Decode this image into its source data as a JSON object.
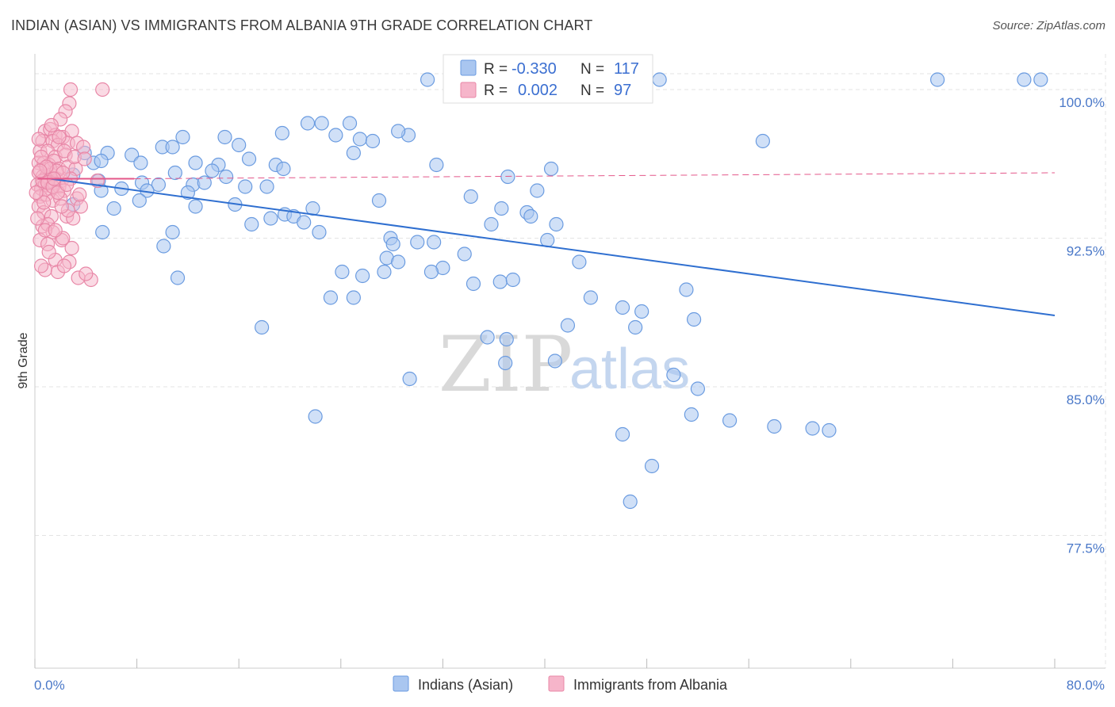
{
  "title": "INDIAN (ASIAN) VS IMMIGRANTS FROM ALBANIA 9TH GRADE CORRELATION CHART",
  "source": "Source: ZipAtlas.com",
  "watermark": {
    "zip": "ZIP",
    "atlas": "atlas"
  },
  "colors": {
    "blue_fill": "#a9c6f0",
    "blue_stroke": "#6a9be0",
    "blue_line": "#2f6fd0",
    "pink_fill": "#f6b5ca",
    "pink_stroke": "#e887a7",
    "pink_line": "#e4578a",
    "tick_text": "#4a78c8",
    "grid": "#e3e3e3"
  },
  "legend_box": {
    "series": [
      {
        "r_label": "R =",
        "r_value": "-0.330",
        "n_label": "N =",
        "n_value": "117"
      },
      {
        "r_label": "R =",
        "r_value": "0.002",
        "n_label": "N =",
        "n_value": "97"
      }
    ]
  },
  "bottom_legend": [
    "Indians (Asian)",
    "Immigrants from Albania"
  ],
  "chart_data": {
    "type": "scatter",
    "title": "INDIAN (ASIAN) VS IMMIGRANTS FROM ALBANIA 9TH GRADE CORRELATION CHART",
    "xlabel": "",
    "ylabel": "9th Grade",
    "xlim": [
      0,
      80
    ],
    "ylim": [
      70.8,
      101.8
    ],
    "x_tick_labels": [
      "0.0%",
      "80.0%"
    ],
    "y_ticks": [
      77.5,
      85.0,
      92.5,
      100.0
    ],
    "y_tick_labels": [
      "77.5%",
      "85.0%",
      "92.5%",
      "100.0%"
    ],
    "grid": true,
    "series": [
      {
        "name": "Indians (Asian)",
        "r": -0.33,
        "n": 117,
        "trend": {
          "x": [
            1.2,
            80
          ],
          "y": [
            95.5,
            88.6
          ]
        },
        "points": [
          [
            30.8,
            100.5
          ],
          [
            49.0,
            100.5
          ],
          [
            70.8,
            100.5
          ],
          [
            77.6,
            100.5
          ],
          [
            78.9,
            100.5
          ],
          [
            21.4,
            98.3
          ],
          [
            22.5,
            98.3
          ],
          [
            24.7,
            98.3
          ],
          [
            29.3,
            97.7
          ],
          [
            28.5,
            97.9
          ],
          [
            19.4,
            97.8
          ],
          [
            23.6,
            97.7
          ],
          [
            11.6,
            97.6
          ],
          [
            14.9,
            97.6
          ],
          [
            25.5,
            97.5
          ],
          [
            26.5,
            97.4
          ],
          [
            57.1,
            97.4
          ],
          [
            10.0,
            97.1
          ],
          [
            10.8,
            97.1
          ],
          [
            16.0,
            97.2
          ],
          [
            5.7,
            96.8
          ],
          [
            3.9,
            96.8
          ],
          [
            7.6,
            96.7
          ],
          [
            8.3,
            96.3
          ],
          [
            4.6,
            96.3
          ],
          [
            5.2,
            96.4
          ],
          [
            18.9,
            96.2
          ],
          [
            25.0,
            96.8
          ],
          [
            16.8,
            96.5
          ],
          [
            14.4,
            96.2
          ],
          [
            19.5,
            96.0
          ],
          [
            12.6,
            96.3
          ],
          [
            13.9,
            95.9
          ],
          [
            11.0,
            95.8
          ],
          [
            31.5,
            96.2
          ],
          [
            40.5,
            96.0
          ],
          [
            5.0,
            95.4
          ],
          [
            3.0,
            95.7
          ],
          [
            8.4,
            95.3
          ],
          [
            9.7,
            95.2
          ],
          [
            12.4,
            95.2
          ],
          [
            13.3,
            95.3
          ],
          [
            15.0,
            95.6
          ],
          [
            16.5,
            95.1
          ],
          [
            18.2,
            95.1
          ],
          [
            6.8,
            95.0
          ],
          [
            5.2,
            94.9
          ],
          [
            8.8,
            94.9
          ],
          [
            12.0,
            94.8
          ],
          [
            37.1,
            95.6
          ],
          [
            34.2,
            94.6
          ],
          [
            27.0,
            94.4
          ],
          [
            3.0,
            94.2
          ],
          [
            6.2,
            94.0
          ],
          [
            12.6,
            94.1
          ],
          [
            18.5,
            93.5
          ],
          [
            19.6,
            93.7
          ],
          [
            21.8,
            94.0
          ],
          [
            20.3,
            93.6
          ],
          [
            36.6,
            94.0
          ],
          [
            38.6,
            93.8
          ],
          [
            38.9,
            93.6
          ],
          [
            17.0,
            93.2
          ],
          [
            21.1,
            93.3
          ],
          [
            22.3,
            92.8
          ],
          [
            5.3,
            92.8
          ],
          [
            10.8,
            92.8
          ],
          [
            27.9,
            92.5
          ],
          [
            28.1,
            92.2
          ],
          [
            30.0,
            92.3
          ],
          [
            31.3,
            92.3
          ],
          [
            40.2,
            92.4
          ],
          [
            27.6,
            91.5
          ],
          [
            32.0,
            91.0
          ],
          [
            11.2,
            90.5
          ],
          [
            25.0,
            89.5
          ],
          [
            25.7,
            90.6
          ],
          [
            27.4,
            90.8
          ],
          [
            28.5,
            91.3
          ],
          [
            31.1,
            90.8
          ],
          [
            36.5,
            90.3
          ],
          [
            37.5,
            90.4
          ],
          [
            43.6,
            89.5
          ],
          [
            46.1,
            89.0
          ],
          [
            47.6,
            88.8
          ],
          [
            17.8,
            88.0
          ],
          [
            35.5,
            87.5
          ],
          [
            37.0,
            87.4
          ],
          [
            41.8,
            88.1
          ],
          [
            47.1,
            88.0
          ],
          [
            51.7,
            88.4
          ],
          [
            51.1,
            89.9
          ],
          [
            29.4,
            85.4
          ],
          [
            22.0,
            83.5
          ],
          [
            36.9,
            86.2
          ],
          [
            40.8,
            86.3
          ],
          [
            50.1,
            85.6
          ],
          [
            52.0,
            84.9
          ],
          [
            51.5,
            83.6
          ],
          [
            46.1,
            82.6
          ],
          [
            54.5,
            83.3
          ],
          [
            58.0,
            83.0
          ],
          [
            61.0,
            82.9
          ],
          [
            62.3,
            82.8
          ],
          [
            48.4,
            81.0
          ],
          [
            46.7,
            79.2
          ],
          [
            10.1,
            92.1
          ],
          [
            8.2,
            94.4
          ],
          [
            15.7,
            94.2
          ],
          [
            39.4,
            94.9
          ],
          [
            40.9,
            93.2
          ],
          [
            24.1,
            90.8
          ],
          [
            23.2,
            89.5
          ],
          [
            34.4,
            90.2
          ],
          [
            33.7,
            91.7
          ],
          [
            35.8,
            93.2
          ],
          [
            42.7,
            91.3
          ]
        ]
      },
      {
        "name": "Immigrants from Albania",
        "r": 0.002,
        "n": 97,
        "trend": {
          "x": [
            0.2,
            80
          ],
          "y": [
            95.5,
            95.8
          ]
        },
        "points": [
          [
            2.8,
            100.0
          ],
          [
            5.3,
            100.0
          ],
          [
            2.7,
            99.3
          ],
          [
            2.4,
            98.9
          ],
          [
            2.0,
            98.5
          ],
          [
            0.8,
            97.9
          ],
          [
            1.2,
            98.0
          ],
          [
            1.6,
            97.7
          ],
          [
            2.2,
            97.6
          ],
          [
            2.9,
            97.9
          ],
          [
            0.6,
            97.4
          ],
          [
            1.4,
            97.4
          ],
          [
            1.8,
            97.2
          ],
          [
            2.6,
            97.3
          ],
          [
            3.3,
            97.3
          ],
          [
            0.4,
            96.9
          ],
          [
            1.0,
            96.9
          ],
          [
            1.6,
            96.6
          ],
          [
            2.4,
            96.7
          ],
          [
            0.3,
            96.3
          ],
          [
            0.7,
            96.3
          ],
          [
            1.1,
            96.2
          ],
          [
            1.5,
            96.4
          ],
          [
            1.9,
            96.0
          ],
          [
            2.6,
            96.1
          ],
          [
            3.2,
            96.0
          ],
          [
            0.3,
            95.8
          ],
          [
            0.6,
            95.6
          ],
          [
            0.9,
            95.6
          ],
          [
            1.3,
            95.7
          ],
          [
            1.7,
            95.5
          ],
          [
            2.1,
            95.4
          ],
          [
            2.8,
            95.5
          ],
          [
            0.2,
            95.2
          ],
          [
            0.5,
            95.0
          ],
          [
            0.8,
            95.2
          ],
          [
            1.2,
            95.0
          ],
          [
            1.5,
            95.3
          ],
          [
            1.9,
            95.1
          ],
          [
            2.3,
            94.9
          ],
          [
            0.4,
            94.6
          ],
          [
            0.9,
            94.7
          ],
          [
            1.4,
            94.4
          ],
          [
            2.0,
            94.5
          ],
          [
            3.3,
            94.5
          ],
          [
            0.3,
            94.1
          ],
          [
            0.7,
            93.8
          ],
          [
            1.3,
            93.6
          ],
          [
            2.5,
            93.6
          ],
          [
            3.6,
            94.1
          ],
          [
            0.6,
            93.1
          ],
          [
            1.0,
            93.2
          ],
          [
            1.4,
            92.8
          ],
          [
            2.1,
            92.4
          ],
          [
            3.0,
            93.5
          ],
          [
            0.4,
            92.4
          ],
          [
            1.0,
            92.2
          ],
          [
            1.6,
            91.4
          ],
          [
            2.7,
            91.3
          ],
          [
            0.8,
            90.9
          ],
          [
            1.8,
            90.8
          ],
          [
            2.3,
            91.1
          ],
          [
            3.4,
            90.5
          ],
          [
            4.4,
            90.4
          ],
          [
            4.0,
            90.7
          ],
          [
            0.3,
            97.5
          ],
          [
            0.5,
            96.6
          ],
          [
            1.2,
            96.0
          ],
          [
            1.7,
            95.9
          ],
          [
            2.2,
            95.8
          ],
          [
            0.6,
            95.4
          ],
          [
            1.0,
            95.3
          ],
          [
            1.4,
            95.1
          ],
          [
            1.8,
            94.8
          ],
          [
            0.7,
            94.3
          ],
          [
            0.2,
            93.5
          ],
          [
            2.3,
            96.9
          ],
          [
            1.9,
            97.6
          ],
          [
            3.1,
            96.6
          ],
          [
            3.8,
            97.1
          ],
          [
            4.9,
            95.4
          ],
          [
            0.9,
            96.1
          ],
          [
            0.4,
            95.9
          ],
          [
            1.5,
            95.5
          ],
          [
            2.5,
            95.2
          ],
          [
            3.5,
            94.7
          ],
          [
            0.1,
            94.8
          ],
          [
            0.8,
            92.9
          ],
          [
            2.2,
            92.5
          ],
          [
            1.1,
            91.8
          ],
          [
            2.6,
            93.9
          ],
          [
            3.9,
            96.5
          ],
          [
            2.1,
            94.1
          ],
          [
            1.6,
            92.9
          ],
          [
            0.5,
            91.1
          ],
          [
            2.9,
            92.0
          ],
          [
            1.3,
            98.2
          ]
        ]
      }
    ]
  }
}
